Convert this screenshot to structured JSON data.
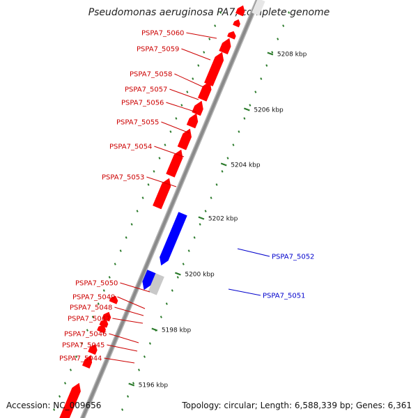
{
  "title": "Pseudomonas aeruginosa PA7, complete genome",
  "footer": {
    "accession": "Accession: NC_009656",
    "topology": "Topology: circular; Length: 6,588,339 bp; Genes: 6,361"
  },
  "colors": {
    "forward_gene": "#ff0000",
    "reverse_gene": "#0000ff",
    "other_gene": "#c8c8c8",
    "backbone": "#8a8a8a",
    "tick": "#2a7a2a",
    "forward_label": "#cc0000",
    "reverse_label": "#0000cc"
  },
  "scale_ticks": [
    "5196 kbp",
    "5198 kbp",
    "5200 kbp",
    "5202 kbp",
    "5204 kbp",
    "5206 kbp",
    "5208 kbp"
  ],
  "forward_labels": [
    "PSPA7_5060",
    "PSPA7_5059",
    "PSPA7_5058",
    "PSPA7_5057",
    "PSPA7_5056",
    "PSPA7_5055",
    "PSPA7_5054",
    "PSPA7_5053",
    "PSPA7_5050",
    "PSPA7_5049",
    "PSPA7_5048",
    "PSPA7_5047",
    "PSPA7_5046",
    "PSPA7_5045",
    "PSPA7_5044"
  ],
  "reverse_labels": [
    "PSPA7_5052",
    "PSPA7_5051"
  ]
}
